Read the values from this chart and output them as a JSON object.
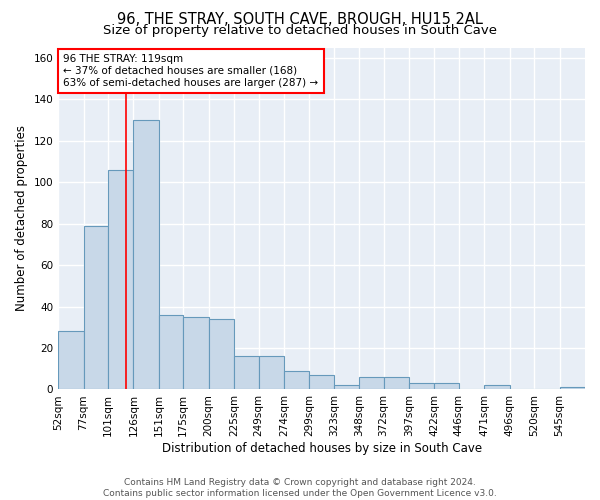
{
  "title": "96, THE STRAY, SOUTH CAVE, BROUGH, HU15 2AL",
  "subtitle": "Size of property relative to detached houses in South Cave",
  "xlabel": "Distribution of detached houses by size in South Cave",
  "ylabel": "Number of detached properties",
  "bar_color": "#c8d8e8",
  "bar_edge_color": "#6699bb",
  "background_color": "#e8eef6",
  "grid_color": "white",
  "categories": [
    "52sqm",
    "77sqm",
    "101sqm",
    "126sqm",
    "151sqm",
    "175sqm",
    "200sqm",
    "225sqm",
    "249sqm",
    "274sqm",
    "299sqm",
    "323sqm",
    "348sqm",
    "372sqm",
    "397sqm",
    "422sqm",
    "446sqm",
    "471sqm",
    "496sqm",
    "520sqm",
    "545sqm"
  ],
  "values": [
    28,
    79,
    106,
    130,
    36,
    35,
    34,
    16,
    16,
    9,
    7,
    2,
    6,
    6,
    3,
    3,
    0,
    2,
    0,
    0,
    1
  ],
  "ylim": [
    0,
    165
  ],
  "yticks": [
    0,
    20,
    40,
    60,
    80,
    100,
    120,
    140,
    160
  ],
  "property_line_x": 119,
  "bin_edges": [
    52,
    77,
    101,
    126,
    151,
    175,
    200,
    225,
    249,
    274,
    299,
    323,
    348,
    372,
    397,
    422,
    446,
    471,
    496,
    520,
    545,
    570
  ],
  "annotation_line1": "96 THE STRAY: 119sqm",
  "annotation_line2": "← 37% of detached houses are smaller (168)",
  "annotation_line3": "63% of semi-detached houses are larger (287) →",
  "annotation_box_color": "white",
  "annotation_box_edge_color": "red",
  "red_line_color": "red",
  "footer_text": "Contains HM Land Registry data © Crown copyright and database right 2024.\nContains public sector information licensed under the Open Government Licence v3.0.",
  "title_fontsize": 10.5,
  "subtitle_fontsize": 9.5,
  "axis_label_fontsize": 8.5,
  "tick_fontsize": 7.5,
  "annotation_fontsize": 7.5,
  "footer_fontsize": 6.5
}
